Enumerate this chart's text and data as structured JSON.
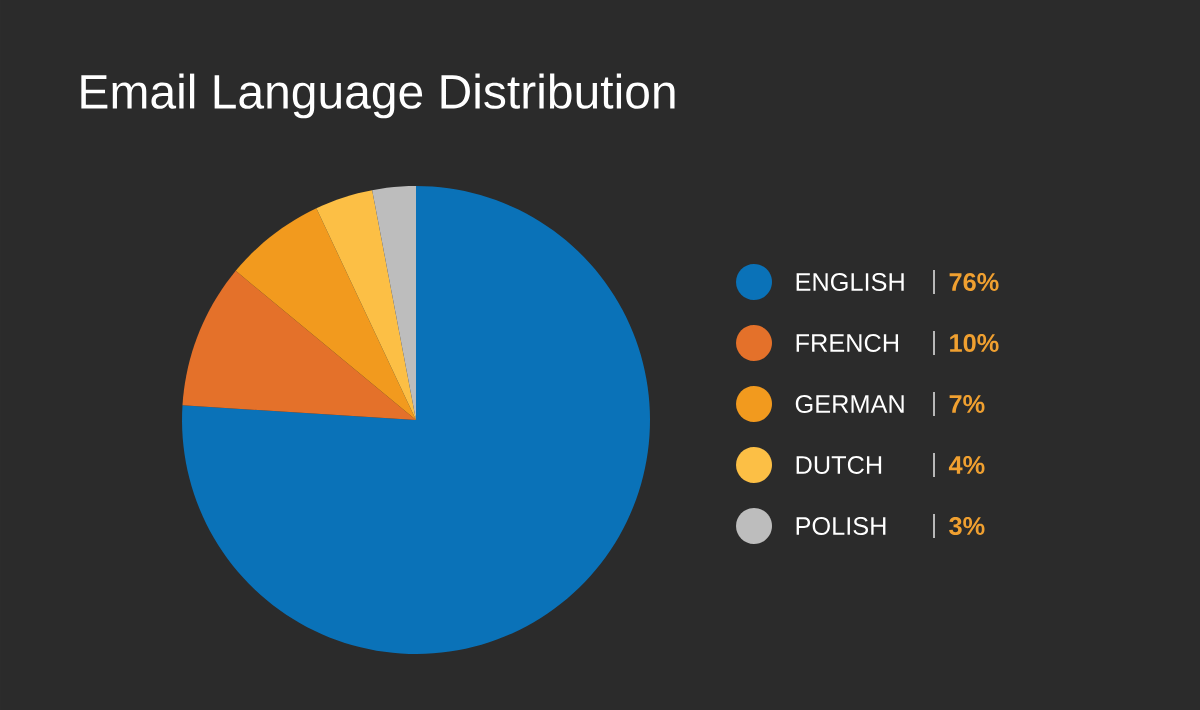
{
  "chart_data": {
    "type": "pie",
    "title": "Email Language Distribution",
    "categories": [
      "ENGLISH",
      "FRENCH",
      "GERMAN",
      "DUTCH",
      "POLISH"
    ],
    "values": [
      76,
      10,
      7,
      4,
      3
    ],
    "value_labels": [
      "76%",
      "10%",
      "7%",
      "4%",
      "3%"
    ],
    "colors": [
      "#0a72b8",
      "#e4712a",
      "#f29a1e",
      "#fcbf45",
      "#bdbdbd"
    ],
    "legend": "right"
  }
}
